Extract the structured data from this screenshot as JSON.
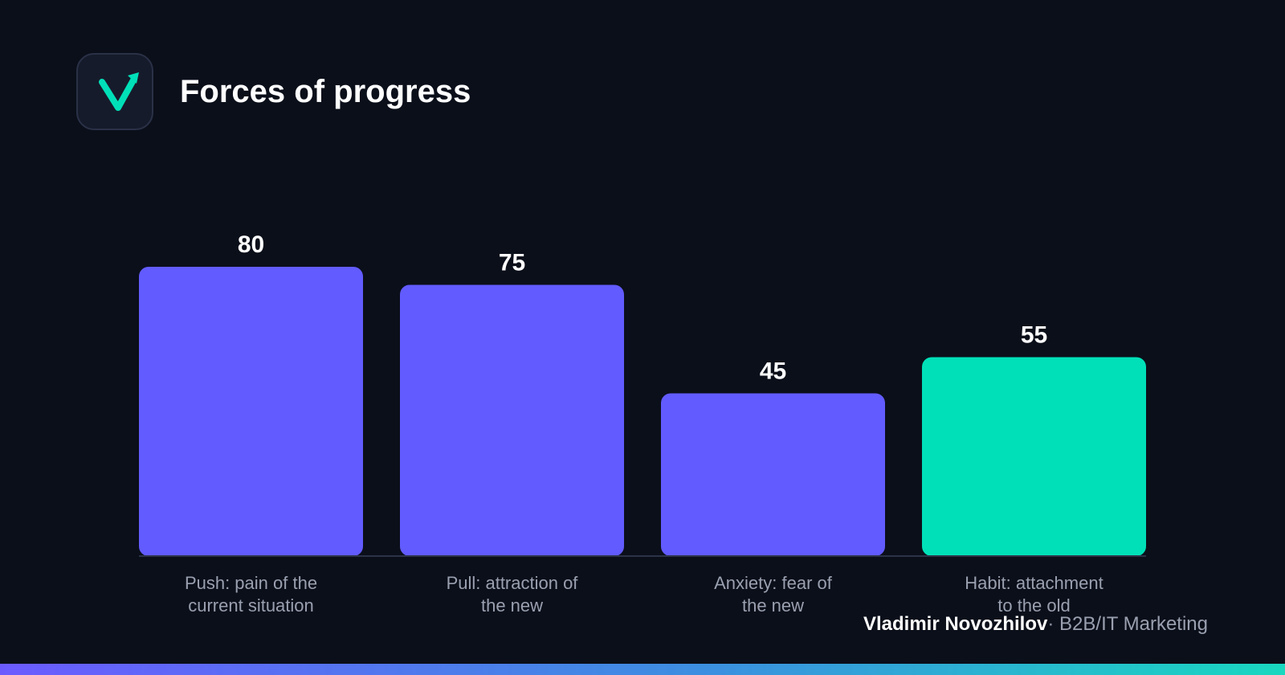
{
  "header": {
    "title": "Forces of progress",
    "logo_icon": "check-arrow-logo-icon"
  },
  "chart_data": {
    "type": "bar",
    "title": "Forces of progress",
    "categories": [
      [
        "Push: pain of the",
        "current situation"
      ],
      [
        "Pull: attraction of",
        "the new"
      ],
      [
        "Anxiety: fear of",
        "the new"
      ],
      [
        "Habit: attachment",
        "to the old"
      ]
    ],
    "values": [
      80,
      75,
      45,
      55
    ],
    "data_labels": [
      "80",
      "75",
      "45",
      "55"
    ],
    "bar_colors": [
      "#625bff",
      "#625bff",
      "#625bff",
      "#00e0b8"
    ],
    "ylim": [
      0,
      100
    ],
    "grid": false,
    "legend": "none"
  },
  "footer": {
    "author": "Vladimir Novozhilov",
    "separator": "·",
    "role": "B2B/IT Marketing"
  },
  "colors": {
    "background": "#0b0f1a",
    "accent_purple": "#625bff",
    "accent_teal": "#00e0b8"
  }
}
